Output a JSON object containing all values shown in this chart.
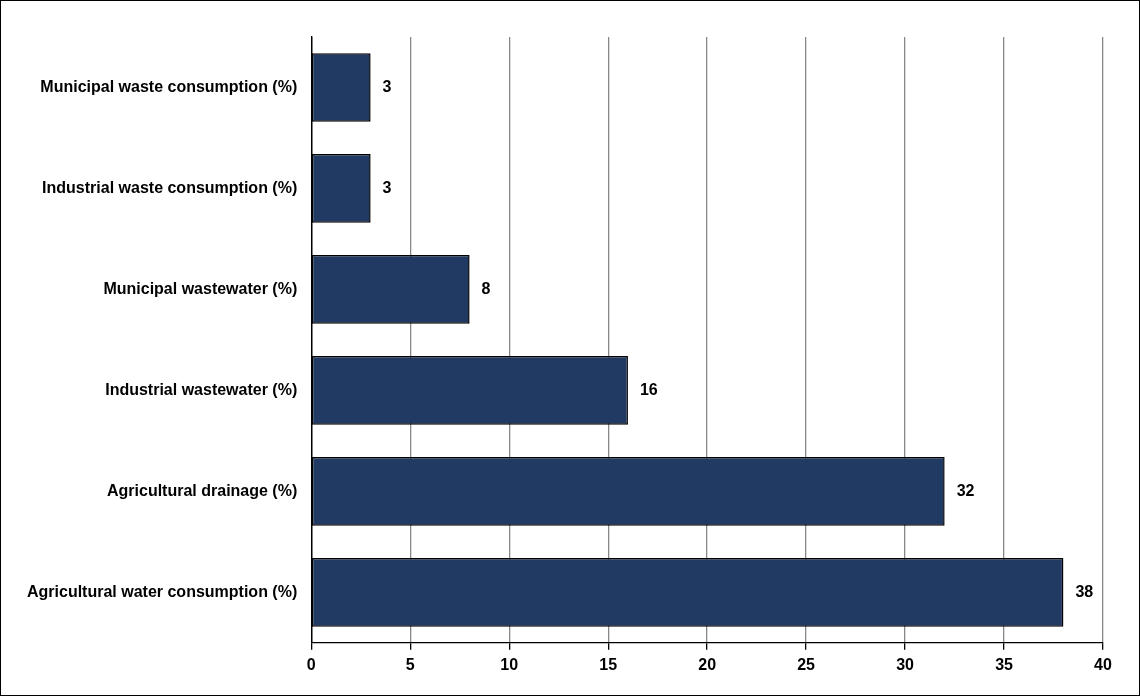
{
  "chart_data": {
    "type": "bar",
    "orientation": "horizontal",
    "categories": [
      "Municipal waste consumption (%)",
      "Industrial waste consumption (%)",
      "Municipal wastewater (%)",
      "Industrial wastewater (%)",
      "Agricultural drainage (%)",
      "Agricultural water consumption (%)"
    ],
    "values": [
      3,
      3,
      8,
      16,
      32,
      38
    ],
    "color": "#213a64",
    "xlim": [
      0,
      40
    ],
    "xticks": [
      0,
      5,
      10,
      15,
      20,
      25,
      30,
      35,
      40
    ],
    "grid": "x",
    "data_labels": true
  }
}
